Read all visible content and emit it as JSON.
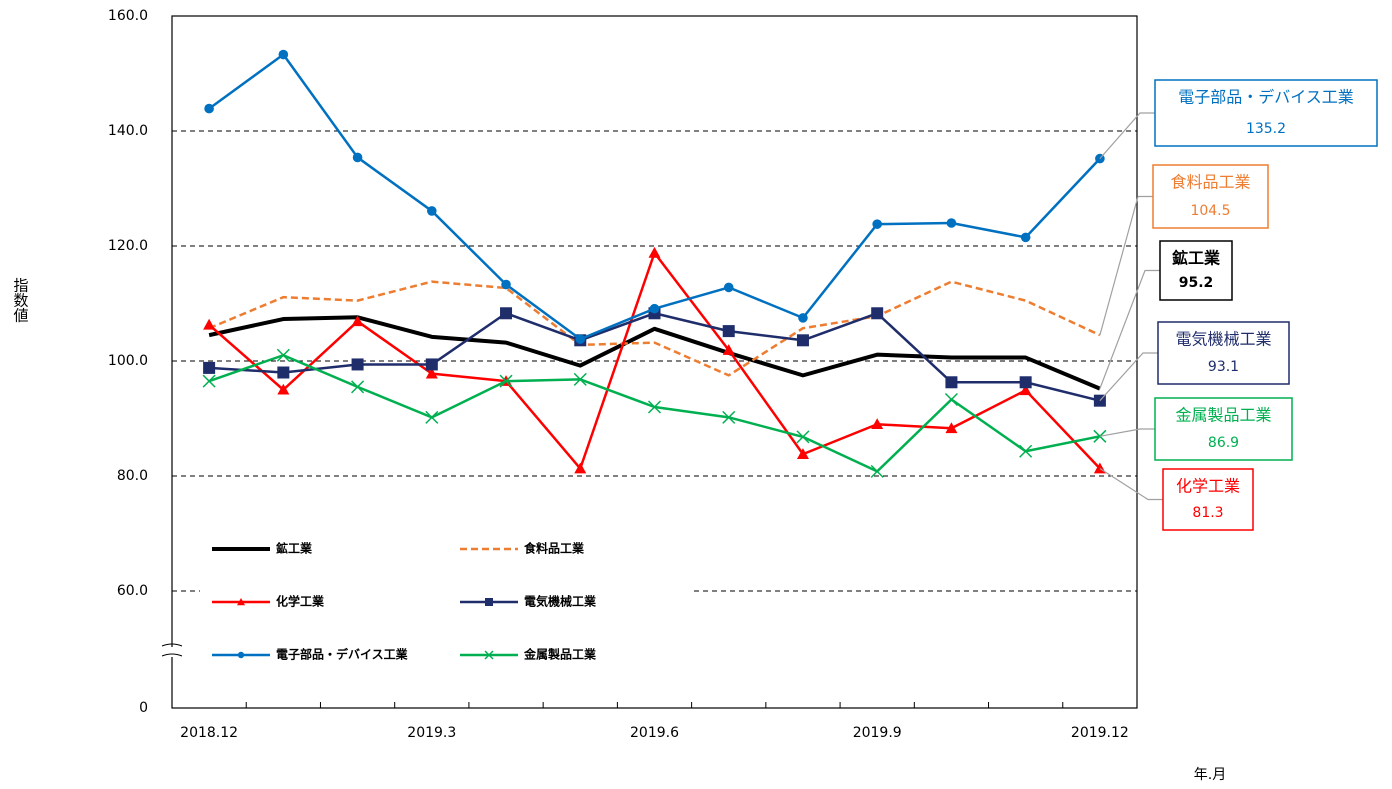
{
  "chart_data": {
    "type": "line",
    "y_label": "指数値",
    "x_label": "年.月",
    "categories": [
      "2018.12",
      null,
      null,
      "2019.3",
      null,
      null,
      "2019.6",
      null,
      null,
      "2019.9",
      null,
      null,
      "2019.12"
    ],
    "ylim": [
      0,
      160
    ],
    "axis_break": [
      0,
      60
    ],
    "yticks": [
      0,
      {
        "value": 60,
        "label": "60.0"
      },
      {
        "value": 80,
        "label": "80.0"
      },
      {
        "value": 100,
        "label": "100.0"
      },
      {
        "value": 120,
        "label": "120.0"
      },
      {
        "value": 140,
        "label": "140.0"
      },
      {
        "value": 160,
        "label": "160.0"
      }
    ],
    "grid": true,
    "series": [
      {
        "name": "鉱工業",
        "color": "#000000",
        "marker": "none",
        "width": 4,
        "dashed": false,
        "values": [
          104.5,
          107.3,
          107.6,
          104.2,
          103.2,
          99.2,
          105.6,
          101.4,
          97.5,
          101.1,
          100.6,
          100.6,
          95.2
        ]
      },
      {
        "name": "食料品工業",
        "color": "#ED7D31",
        "marker": "none",
        "width": 2.5,
        "dashed": true,
        "values": [
          105.7,
          111.1,
          110.5,
          113.8,
          112.7,
          102.8,
          103.2,
          97.5,
          105.7,
          107.8,
          113.8,
          110.5,
          104.5
        ]
      },
      {
        "name": "化学工業",
        "color": "#FF0000",
        "marker": "triangle",
        "width": 2.5,
        "dashed": false,
        "values": [
          106.3,
          95.0,
          106.9,
          97.8,
          96.5,
          81.3,
          118.8,
          101.9,
          83.8,
          89.0,
          88.3,
          94.9,
          81.3
        ]
      },
      {
        "name": "電気機械工業",
        "color": "#1F2D6B",
        "marker": "square",
        "width": 2.5,
        "dashed": false,
        "values": [
          98.8,
          98.0,
          99.4,
          99.4,
          108.3,
          103.6,
          108.3,
          105.2,
          103.6,
          108.3,
          96.3,
          96.3,
          93.1
        ]
      },
      {
        "name": "電子部品・デバイス工業",
        "color": "#0070C0",
        "marker": "circle",
        "width": 2.5,
        "dashed": false,
        "values": [
          143.9,
          153.3,
          135.4,
          126.1,
          113.3,
          103.8,
          109.1,
          112.8,
          107.5,
          123.8,
          124.0,
          121.5,
          135.2
        ]
      },
      {
        "name": "金属製品工業",
        "color": "#00B050",
        "marker": "x",
        "width": 2.5,
        "dashed": false,
        "values": [
          96.5,
          101.0,
          95.5,
          90.2,
          96.5,
          96.8,
          92.0,
          90.2,
          86.8,
          80.8,
          93.3,
          84.3,
          86.9
        ]
      }
    ]
  }
}
